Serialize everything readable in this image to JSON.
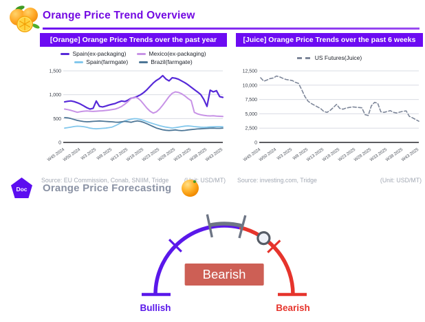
{
  "header": {
    "title": "Orange Price Trend Overview"
  },
  "panels": [
    {
      "title": "[Orange] Orange Price Trends over the past year",
      "legend": [
        {
          "label": "Spain(ex-packaging)",
          "color": "#5629d8",
          "dash": false
        },
        {
          "label": "Mexico(ex-packaging)",
          "color": "#c792e6",
          "dash": false
        },
        {
          "label": "Spain(farmgate)",
          "color": "#82c7ec",
          "dash": false
        },
        {
          "label": "Brazil(farmgate)",
          "color": "#4d7696",
          "dash": false
        }
      ],
      "source": "Source: EU Commission, Conab, SNIIM, Tridge",
      "unit": "(Unit: USD/MT)"
    },
    {
      "title": "[Juice] Orange Price Trends over the past 6 weeks",
      "legend": [
        {
          "label": "US Futures(Juice)",
          "color": "#7d8699",
          "dash": true
        }
      ],
      "source": "Source: investing.com, Tridge",
      "unit": "(Unit: USD/MT)"
    }
  ],
  "chart_data": [
    {
      "type": "line",
      "title": "[Orange] Orange Price Trends over the past year",
      "xlabel": "",
      "ylabel": "",
      "ylim": [
        0,
        1500
      ],
      "yticks": [
        0,
        500,
        1000,
        1500
      ],
      "grid": true,
      "legend_position": "top",
      "x_tick_step": 5,
      "x_tick_labels": [
        "W45 2024",
        "W50 2024",
        "W3 2025",
        "W8 2025",
        "W13 2025",
        "W18 2025",
        "W23 2025",
        "W28 2025",
        "W33 2025",
        "W38 2025",
        "W43 2025"
      ],
      "categories": [
        "W45 2024",
        "W46 2024",
        "W47 2024",
        "W48 2024",
        "W49 2024",
        "W50 2024",
        "W51 2024",
        "W52 2024",
        "W1 2025",
        "W2 2025",
        "W3 2025",
        "W4 2025",
        "W5 2025",
        "W6 2025",
        "W7 2025",
        "W8 2025",
        "W9 2025",
        "W10 2025",
        "W11 2025",
        "W12 2025",
        "W13 2025",
        "W14 2025",
        "W15 2025",
        "W16 2025",
        "W17 2025",
        "W18 2025",
        "W19 2025",
        "W20 2025",
        "W21 2025",
        "W22 2025",
        "W23 2025",
        "W24 2025",
        "W25 2025",
        "W26 2025",
        "W27 2025",
        "W28 2025",
        "W29 2025",
        "W30 2025",
        "W31 2025",
        "W32 2025",
        "W33 2025",
        "W34 2025",
        "W35 2025",
        "W36 2025",
        "W37 2025",
        "W38 2025",
        "W39 2025",
        "W40 2025",
        "W41 2025",
        "W42 2025",
        "W43 2025"
      ],
      "series": [
        {
          "name": "Spain(ex-packaging)",
          "color": "#5629d8",
          "width": 2.2,
          "values": [
            850,
            862,
            870,
            855,
            832,
            803,
            768,
            728,
            700,
            716,
            868,
            756,
            744,
            762,
            783,
            800,
            816,
            845,
            868,
            857,
            885,
            926,
            942,
            966,
            1000,
            1045,
            1105,
            1175,
            1245,
            1300,
            1340,
            1400,
            1330,
            1290,
            1356,
            1345,
            1324,
            1288,
            1252,
            1208,
            1158,
            1108,
            1058,
            1005,
            900,
            755,
            1095,
            1060,
            1085,
            960,
            945
          ]
        },
        {
          "name": "Mexico(ex-packaging)",
          "color": "#c792e6",
          "width": 2.0,
          "values": [
            700,
            688,
            672,
            652,
            632,
            645,
            655,
            660,
            655,
            650,
            655,
            660,
            664,
            670,
            678,
            688,
            700,
            722,
            755,
            800,
            855,
            920,
            950,
            935,
            880,
            800,
            720,
            655,
            615,
            640,
            700,
            780,
            870,
            960,
            1030,
            1060,
            1048,
            1020,
            975,
            920,
            875,
            630,
            598,
            580,
            568,
            560,
            555,
            560,
            552,
            548,
            545
          ]
        },
        {
          "name": "Spain(farmgate)",
          "color": "#82c7ec",
          "width": 1.8,
          "values": [
            300,
            310,
            322,
            333,
            340,
            338,
            330,
            318,
            300,
            290,
            286,
            290,
            295,
            300,
            310,
            322,
            350,
            382,
            420,
            450,
            470,
            488,
            498,
            494,
            480,
            462,
            435,
            412,
            392,
            372,
            352,
            336,
            322,
            312,
            302,
            310,
            320,
            332,
            342,
            346,
            340,
            332,
            326,
            320,
            318,
            320,
            326,
            328,
            330,
            330,
            328
          ]
        },
        {
          "name": "Brazil(farmgate)",
          "color": "#4d7696",
          "width": 1.8,
          "values": [
            520,
            515,
            500,
            480,
            462,
            448,
            438,
            432,
            436,
            442,
            446,
            450,
            446,
            440,
            436,
            432,
            426,
            422,
            432,
            442,
            432,
            422,
            440,
            452,
            440,
            420,
            392,
            362,
            332,
            302,
            282,
            266,
            256,
            250,
            256,
            262,
            252,
            246,
            252,
            262,
            270,
            276,
            282,
            286,
            290,
            294,
            298,
            300,
            296,
            296,
            300
          ]
        }
      ]
    },
    {
      "type": "line",
      "title": "[Juice] Orange Price Trends over the past 6 weeks",
      "xlabel": "",
      "ylabel": "",
      "ylim": [
        0,
        12500
      ],
      "yticks": [
        0,
        2500,
        5000,
        7500,
        10000,
        12500
      ],
      "grid": true,
      "legend_position": "top",
      "x_tick_step": 5,
      "x_tick_labels": [
        "W45 2024",
        "W50 2024",
        "W3 2025",
        "W8 2025",
        "W13 2025",
        "W18 2025",
        "W23 2025",
        "W28 2025",
        "W33 2025",
        "W38 2025",
        "W43 2025"
      ],
      "categories": [
        "W45 2024",
        "W46 2024",
        "W47 2024",
        "W48 2024",
        "W49 2024",
        "W50 2024",
        "W51 2024",
        "W52 2024",
        "W1 2025",
        "W2 2025",
        "W3 2025",
        "W4 2025",
        "W5 2025",
        "W6 2025",
        "W7 2025",
        "W8 2025",
        "W9 2025",
        "W10 2025",
        "W11 2025",
        "W12 2025",
        "W13 2025",
        "W14 2025",
        "W15 2025",
        "W16 2025",
        "W17 2025",
        "W18 2025",
        "W19 2025",
        "W20 2025",
        "W21 2025",
        "W22 2025",
        "W23 2025",
        "W24 2025",
        "W25 2025",
        "W26 2025",
        "W27 2025",
        "W28 2025",
        "W29 2025",
        "W30 2025",
        "W31 2025",
        "W32 2025",
        "W33 2025",
        "W34 2025",
        "W35 2025",
        "W36 2025",
        "W37 2025",
        "W38 2025",
        "W39 2025",
        "W40 2025",
        "W41 2025",
        "W42 2025",
        "W43 2025"
      ],
      "series": [
        {
          "name": "US Futures(Juice)",
          "color": "#7d8699",
          "width": 1.6,
          "dash": "5 3",
          "values": [
            11300,
            10700,
            10900,
            11150,
            11250,
            11600,
            11450,
            11200,
            11000,
            10900,
            10800,
            10500,
            10300,
            9200,
            8000,
            7200,
            6800,
            6500,
            6200,
            5900,
            5400,
            5250,
            5600,
            6100,
            6650,
            5950,
            5800,
            6000,
            6100,
            6200,
            6150,
            6100,
            6050,
            4850,
            4700,
            6400,
            7000,
            6850,
            5350,
            5250,
            5400,
            5550,
            5250,
            5150,
            5300,
            5450,
            5500,
            4550,
            4300,
            4000,
            3700
          ]
        }
      ]
    }
  ],
  "forecast": {
    "doc_badge": "Doc",
    "title": "Orange Price Forecasting"
  },
  "gauge": {
    "left_label": "Bullish",
    "right_label": "Bearish",
    "status_label": "Bearish",
    "needle_angle_deg": 55,
    "colors": {
      "bullish": "#5a18ea",
      "bearish": "#e6342c",
      "neutral_zone": "#6d7585",
      "badge_bg": "#cd5f55"
    }
  }
}
